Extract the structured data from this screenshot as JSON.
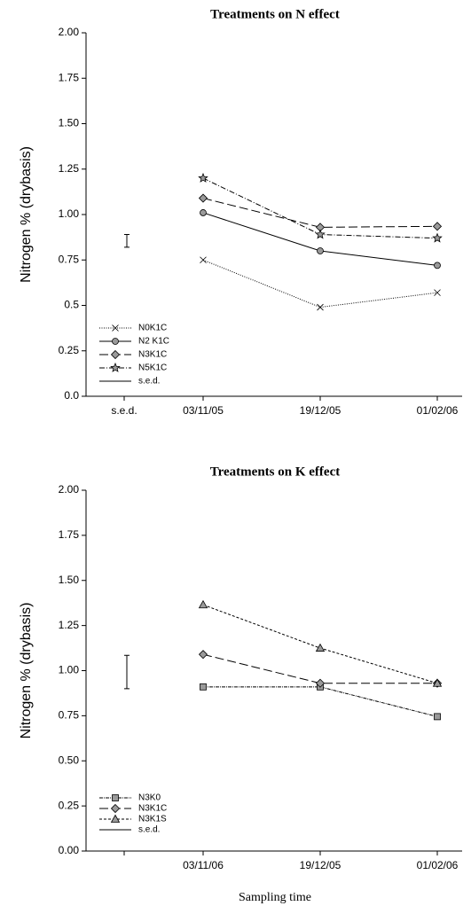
{
  "chart_data": [
    {
      "type": "line",
      "title": "Treatments on N effect",
      "ylabel": "Nitrogen % (drybasis)",
      "categories": [
        "s.e.d.",
        "03/11/05",
        "19/12/05",
        "01/02/06"
      ],
      "ylim": [
        0,
        2
      ],
      "yticks": [
        {
          "value": 0,
          "label": "0.0"
        },
        0.25,
        0.5,
        0.75,
        {
          "value": 1,
          "label": "1.00"
        },
        1.25,
        {
          "value": 1.5,
          "label": "1.50"
        },
        1.75,
        {
          "value": 2,
          "label": "2.00"
        }
      ],
      "series": [
        {
          "name": "N0K1C",
          "color": "#000000",
          "marker": "x",
          "dash": "1,1.5",
          "values": [
            null,
            0.75,
            0.49,
            0.57
          ]
        },
        {
          "name": "N2 K1C",
          "color": "#000000",
          "marker": "circle",
          "dash": "",
          "values": [
            null,
            1.01,
            0.8,
            0.72
          ]
        },
        {
          "name": "N3K1C",
          "color": "#000000",
          "marker": "diamond",
          "dash": "10,4",
          "values": [
            null,
            1.09,
            0.93,
            0.935
          ]
        },
        {
          "name": "N5K1C",
          "color": "#000000",
          "marker": "star",
          "dash": "6,2,1,2",
          "values": [
            null,
            1.2,
            0.89,
            0.87
          ]
        }
      ],
      "sed": {
        "name": "s.e.d.",
        "value": 0.855,
        "error": 0.035
      },
      "legend": "lower left"
    },
    {
      "type": "line",
      "title": "Treatments on K effect",
      "ylabel": "Nitrogen % (drybasis)",
      "xlabel": "Sampling time",
      "categories": [
        null,
        "03/11/06",
        "19/12/05",
        "01/02/06"
      ],
      "ylim": [
        0,
        2
      ],
      "yticks": [
        {
          "value": 0,
          "label": "0.00"
        },
        0.25,
        {
          "value": 0.5,
          "label": "0.50"
        },
        0.75,
        {
          "value": 1,
          "label": "1.00"
        },
        1.25,
        {
          "value": 1.5,
          "label": "1.50"
        },
        1.75,
        {
          "value": 2,
          "label": "2.00"
        }
      ],
      "series": [
        {
          "name": "N3K0",
          "color": "#000000",
          "marker": "square",
          "dash": "4,1,1,1",
          "values": [
            null,
            0.91,
            0.91,
            0.745
          ]
        },
        {
          "name": "N3K1C",
          "color": "#000000",
          "marker": "diamond",
          "dash": "10,4",
          "values": [
            null,
            1.09,
            0.93,
            0.93
          ]
        },
        {
          "name": "N3K1S",
          "color": "#000000",
          "marker": "triangle",
          "dash": "3,2",
          "values": [
            null,
            1.365,
            1.125,
            0.93
          ]
        }
      ],
      "sed": {
        "name": "s.e.d.",
        "value": 0.9925,
        "error": 0.0925
      },
      "legend": "lower left"
    }
  ]
}
